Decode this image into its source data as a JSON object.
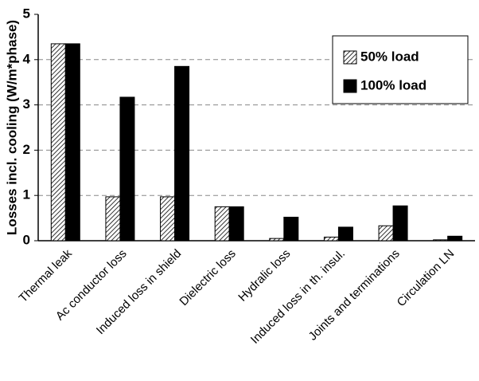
{
  "chart_data": {
    "type": "bar",
    "y_label": "Losses incl. cooling (W/m*phase)",
    "categories": [
      "Thermal leak",
      "Ac conductor loss",
      "Induced loss in shield",
      "Dielectric loss",
      "Hydralic loss",
      "Induced loss in th. insul.",
      "Joints and terminations",
      "Circulation LN"
    ],
    "series": [
      {
        "name": "50% load",
        "color": "#000000",
        "pattern": "hatch",
        "values": [
          4.35,
          0.97,
          0.97,
          0.75,
          0.05,
          0.08,
          0.33,
          0.02
        ]
      },
      {
        "name": "100% load",
        "color": "#000000",
        "values": [
          4.35,
          3.17,
          3.85,
          0.75,
          0.52,
          0.3,
          0.77,
          0.1
        ]
      }
    ],
    "ylim": [
      0,
      5
    ],
    "yticks": [
      0,
      1,
      2,
      3,
      4,
      5
    ],
    "grid": true,
    "legend": "upper right"
  }
}
